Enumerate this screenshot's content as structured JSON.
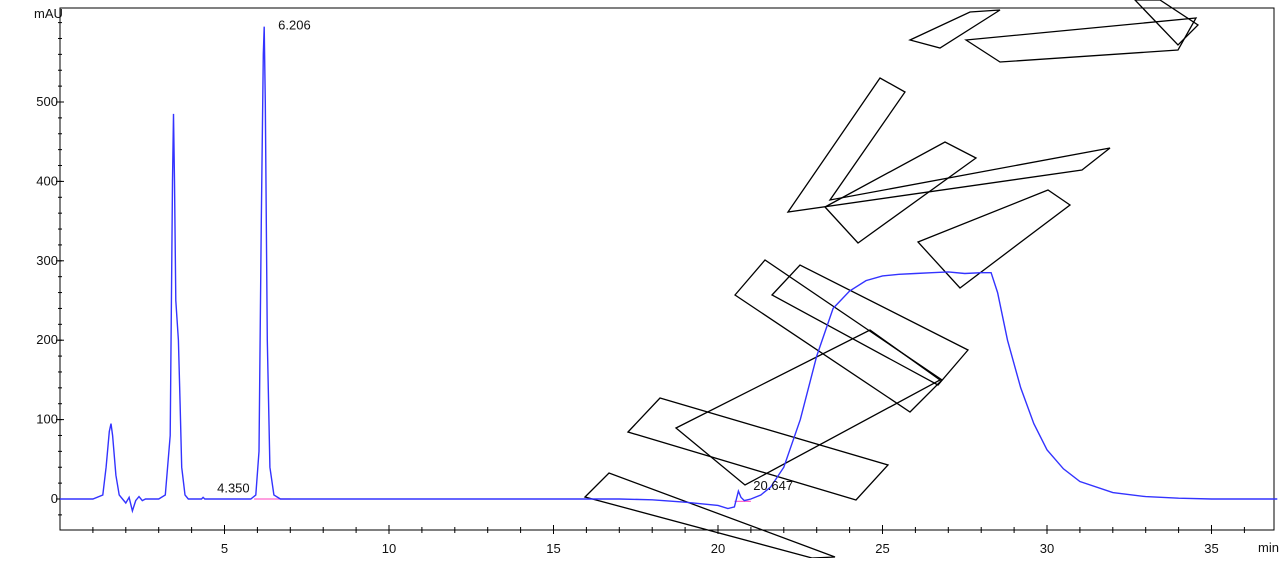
{
  "chart_data": {
    "type": "line",
    "title": "",
    "ylabel": "mAU",
    "xlabel": "min",
    "xlim": [
      0,
      37
    ],
    "ylim": [
      -40,
      620
    ],
    "x_ticks": [
      5,
      10,
      15,
      20,
      25,
      30,
      35
    ],
    "x_tick_labels": [
      "5",
      "10",
      "15",
      "20",
      "25",
      "30",
      "35"
    ],
    "y_ticks": [
      0,
      100,
      200,
      300,
      400,
      500
    ],
    "y_tick_labels": [
      "0",
      "100",
      "200",
      "300",
      "400",
      "500"
    ],
    "grid": false,
    "line_color": "#3333ff",
    "baseline_color": "#ff66cc",
    "peak_labels": [
      {
        "x": 6.206,
        "y": 595,
        "text": "6.206"
      },
      {
        "x": 4.35,
        "y": 12,
        "text": "4.350"
      },
      {
        "x": 20.647,
        "y": 15,
        "text": "20.647"
      }
    ],
    "series": [
      {
        "x": [
          0,
          1.0,
          1.3,
          1.4,
          1.5,
          1.55,
          1.6,
          1.7,
          1.8,
          1.9,
          2.0,
          2.1,
          2.2,
          2.3,
          2.4,
          2.5,
          2.6,
          2.8,
          3.0,
          3.2,
          3.35,
          3.42,
          3.45,
          3.48,
          3.52,
          3.6,
          3.65,
          3.7,
          3.8,
          3.9,
          4.0,
          4.3,
          4.35,
          4.4,
          5.0,
          5.8,
          5.95,
          6.05,
          6.12,
          6.18,
          6.206,
          6.24,
          6.3,
          6.38,
          6.5,
          6.7,
          7.0,
          10,
          15,
          17,
          18,
          19,
          20,
          20.3,
          20.5,
          20.62,
          20.7,
          20.8,
          21.0,
          21.3,
          21.6,
          22.0,
          22.5,
          23.0,
          23.5,
          24.0,
          24.5,
          25.0,
          25.5,
          26.0,
          26.5,
          27.0,
          27.5,
          28.0,
          28.3,
          28.5,
          28.8,
          29.2,
          29.6,
          30.0,
          30.5,
          31.0,
          32.0,
          33.0,
          34.0,
          35.0,
          37.0
        ],
        "y": [
          0,
          0,
          5,
          40,
          85,
          95,
          80,
          30,
          5,
          0,
          -5,
          2,
          -15,
          -2,
          3,
          -2,
          0,
          0,
          0,
          5,
          80,
          400,
          485,
          400,
          250,
          200,
          120,
          40,
          5,
          0,
          0,
          0,
          2,
          0,
          0,
          0,
          5,
          60,
          350,
          560,
          595,
          500,
          200,
          40,
          5,
          0,
          0,
          0,
          0,
          0,
          -1,
          -4,
          -8,
          -12,
          -10,
          10,
          2,
          -2,
          0,
          5,
          15,
          40,
          100,
          180,
          240,
          262,
          275,
          281,
          283,
          284,
          285,
          286,
          284,
          285,
          285,
          260,
          200,
          140,
          95,
          62,
          38,
          22,
          8,
          3,
          1,
          0,
          0
        ]
      }
    ]
  }
}
